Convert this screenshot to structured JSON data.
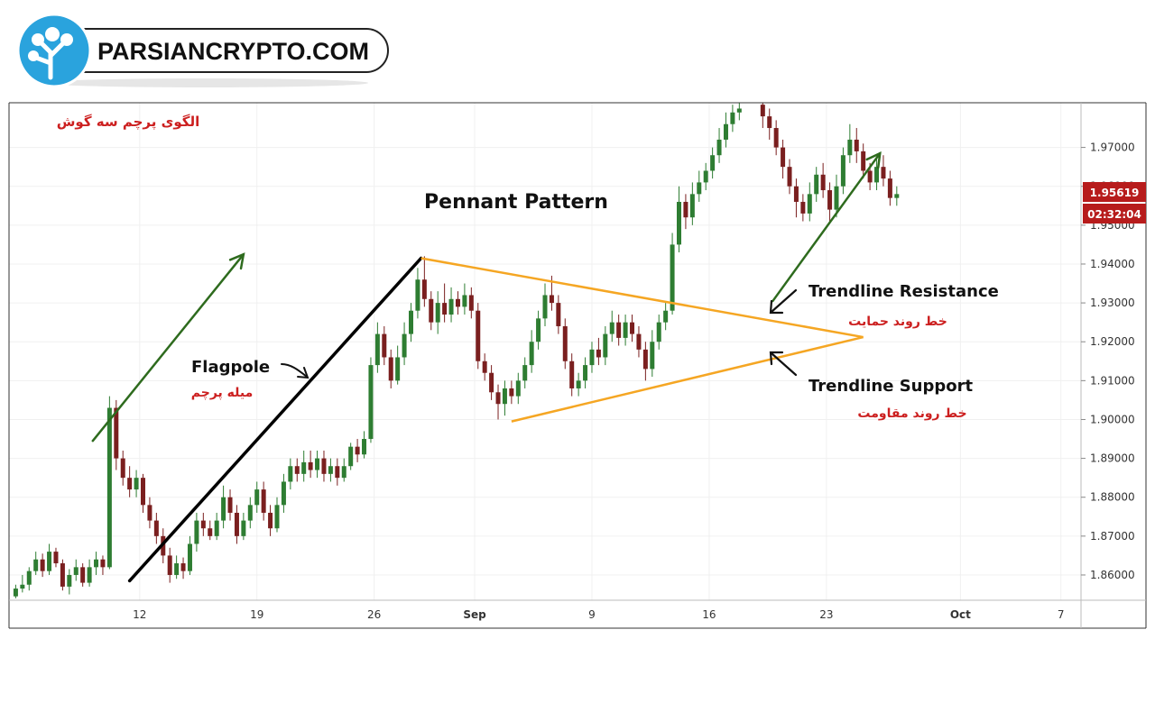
{
  "brand": {
    "text": "PARSIANCRYPTO.COM",
    "logo_icon": "tree-icon",
    "accent": "#2aa3dd"
  },
  "chart_data": {
    "type": "candlestick",
    "title_fa": "الگوی پرچم سه گوش",
    "pattern_title": "Pennant Pattern",
    "annotations": {
      "flagpole_en": "Flagpole",
      "flagpole_fa": "میله پرچم",
      "resistance_en": "Trendline Resistance",
      "resistance_fa": "خط روند حمایت",
      "support_en": "Trendline Support",
      "support_fa": "خط روند مقاومت"
    },
    "x_ticks": [
      {
        "day": 12,
        "label": "12"
      },
      {
        "day": 19,
        "label": "19"
      },
      {
        "day": 26,
        "label": "26"
      },
      {
        "day": 32,
        "label": "Sep"
      },
      {
        "day": 39,
        "label": "9"
      },
      {
        "day": 46,
        "label": "16"
      },
      {
        "day": 53,
        "label": "23"
      },
      {
        "day": 61,
        "label": "Oct"
      },
      {
        "day": 67,
        "label": "7"
      }
    ],
    "y_ticks": [
      "1.86000",
      "1.87000",
      "1.88000",
      "1.89000",
      "1.90000",
      "1.91000",
      "1.92000",
      "1.93000",
      "1.94000",
      "1.95000",
      "1.96000",
      "1.97000"
    ],
    "y_range": [
      1.8535,
      1.9815
    ],
    "x_range": [
      4.2,
      68.2
    ],
    "last_price": "1.95619",
    "countdown": "02:32:04",
    "colors": {
      "bull": "#2e7d32",
      "bear": "#7a1f1f",
      "flagpole": "#000000",
      "pennant": "#f5a623",
      "arrow_up": "#2e6b1e",
      "fa_text": "#cc1f1f",
      "price_tag": "#b71c1c"
    },
    "flagpole": {
      "from": {
        "day": 11.4,
        "price": 1.8585
      },
      "to": {
        "day": 28.8,
        "price": 1.9415
      }
    },
    "pennant": {
      "apex": {
        "day": 55.2,
        "price": 1.9212
      },
      "top": {
        "day": 28.8,
        "price": 1.9415
      },
      "bottom": {
        "day": 34.2,
        "price": 1.8995
      }
    },
    "arrows": [
      {
        "from": {
          "day": 9.2,
          "price": 1.8945
        },
        "to": {
          "day": 18.2,
          "price": 1.9425
        }
      },
      {
        "from": {
          "day": 49.8,
          "price": 1.9305
        },
        "to": {
          "day": 56.2,
          "price": 1.9685
        }
      }
    ],
    "candles": [
      [
        4.6,
        1.8545,
        1.8565,
        1.854,
        1.8575
      ],
      [
        5.0,
        1.8565,
        1.8575,
        1.8555,
        1.86
      ],
      [
        5.4,
        1.8575,
        1.861,
        1.856,
        1.862
      ],
      [
        5.8,
        1.861,
        1.864,
        1.86,
        1.866
      ],
      [
        6.2,
        1.864,
        1.861,
        1.8595,
        1.8655
      ],
      [
        6.6,
        1.861,
        1.866,
        1.86,
        1.868
      ],
      [
        7.0,
        1.866,
        1.863,
        1.862,
        1.867
      ],
      [
        7.4,
        1.863,
        1.857,
        1.856,
        1.864
      ],
      [
        7.8,
        1.857,
        1.86,
        1.855,
        1.8615
      ],
      [
        8.2,
        1.86,
        1.862,
        1.8585,
        1.864
      ],
      [
        8.6,
        1.862,
        1.858,
        1.857,
        1.863
      ],
      [
        9.0,
        1.858,
        1.862,
        1.857,
        1.864
      ],
      [
        9.4,
        1.862,
        1.864,
        1.86,
        1.866
      ],
      [
        9.8,
        1.864,
        1.862,
        1.86,
        1.865
      ],
      [
        10.2,
        1.862,
        1.903,
        1.8615,
        1.906
      ],
      [
        10.6,
        1.903,
        1.89,
        1.887,
        1.905
      ],
      [
        11.0,
        1.89,
        1.885,
        1.883,
        1.892
      ],
      [
        11.4,
        1.885,
        1.882,
        1.88,
        1.888
      ],
      [
        11.8,
        1.882,
        1.885,
        1.88,
        1.887
      ],
      [
        12.2,
        1.885,
        1.878,
        1.876,
        1.886
      ],
      [
        12.6,
        1.878,
        1.874,
        1.872,
        1.88
      ],
      [
        13.0,
        1.874,
        1.87,
        1.868,
        1.876
      ],
      [
        13.4,
        1.87,
        1.865,
        1.863,
        1.872
      ],
      [
        13.8,
        1.865,
        1.86,
        1.858,
        1.867
      ],
      [
        14.2,
        1.86,
        1.863,
        1.859,
        1.865
      ],
      [
        14.6,
        1.863,
        1.861,
        1.859,
        1.8645
      ],
      [
        15.0,
        1.861,
        1.868,
        1.86,
        1.87
      ],
      [
        15.4,
        1.868,
        1.874,
        1.866,
        1.876
      ],
      [
        15.8,
        1.874,
        1.872,
        1.87,
        1.876
      ],
      [
        16.2,
        1.872,
        1.87,
        1.869,
        1.874
      ],
      [
        16.6,
        1.87,
        1.874,
        1.869,
        1.876
      ],
      [
        17.0,
        1.874,
        1.88,
        1.872,
        1.883
      ],
      [
        17.4,
        1.88,
        1.876,
        1.874,
        1.882
      ],
      [
        17.8,
        1.876,
        1.87,
        1.868,
        1.878
      ],
      [
        18.2,
        1.87,
        1.874,
        1.869,
        1.876
      ],
      [
        18.6,
        1.874,
        1.878,
        1.872,
        1.88
      ],
      [
        19.0,
        1.878,
        1.882,
        1.876,
        1.884
      ],
      [
        19.4,
        1.882,
        1.876,
        1.874,
        1.884
      ],
      [
        19.8,
        1.876,
        1.872,
        1.87,
        1.878
      ],
      [
        20.2,
        1.872,
        1.878,
        1.871,
        1.88
      ],
      [
        20.6,
        1.878,
        1.884,
        1.876,
        1.886
      ],
      [
        21.0,
        1.884,
        1.888,
        1.882,
        1.89
      ],
      [
        21.4,
        1.888,
        1.886,
        1.884,
        1.89
      ],
      [
        21.8,
        1.886,
        1.889,
        1.884,
        1.892
      ],
      [
        22.2,
        1.889,
        1.887,
        1.885,
        1.892
      ],
      [
        22.6,
        1.887,
        1.89,
        1.885,
        1.892
      ],
      [
        23.0,
        1.89,
        1.886,
        1.884,
        1.892
      ],
      [
        23.4,
        1.886,
        1.888,
        1.884,
        1.89
      ],
      [
        23.8,
        1.888,
        1.885,
        1.883,
        1.89
      ],
      [
        24.2,
        1.885,
        1.888,
        1.884,
        1.89
      ],
      [
        24.6,
        1.888,
        1.893,
        1.887,
        1.894
      ],
      [
        25.0,
        1.893,
        1.891,
        1.889,
        1.895
      ],
      [
        25.4,
        1.891,
        1.895,
        1.89,
        1.897
      ],
      [
        25.8,
        1.895,
        1.914,
        1.894,
        1.916
      ],
      [
        26.2,
        1.914,
        1.922,
        1.912,
        1.925
      ],
      [
        26.6,
        1.922,
        1.916,
        1.914,
        1.924
      ],
      [
        27.0,
        1.916,
        1.91,
        1.908,
        1.918
      ],
      [
        27.4,
        1.91,
        1.916,
        1.909,
        1.919
      ],
      [
        27.8,
        1.916,
        1.922,
        1.914,
        1.925
      ],
      [
        28.2,
        1.922,
        1.928,
        1.92,
        1.93
      ],
      [
        28.6,
        1.928,
        1.936,
        1.926,
        1.939
      ],
      [
        29.0,
        1.936,
        1.931,
        1.929,
        1.942
      ],
      [
        29.4,
        1.931,
        1.925,
        1.923,
        1.933
      ],
      [
        29.8,
        1.925,
        1.93,
        1.922,
        1.933
      ],
      [
        30.2,
        1.93,
        1.927,
        1.925,
        1.935
      ],
      [
        30.6,
        1.927,
        1.931,
        1.925,
        1.934
      ],
      [
        31.0,
        1.931,
        1.929,
        1.927,
        1.933
      ],
      [
        31.4,
        1.929,
        1.932,
        1.927,
        1.935
      ],
      [
        31.8,
        1.932,
        1.928,
        1.926,
        1.934
      ],
      [
        32.2,
        1.928,
        1.915,
        1.913,
        1.93
      ],
      [
        32.6,
        1.915,
        1.912,
        1.91,
        1.917
      ],
      [
        33.0,
        1.912,
        1.907,
        1.905,
        1.914
      ],
      [
        33.4,
        1.907,
        1.904,
        1.9,
        1.909
      ],
      [
        33.8,
        1.904,
        1.908,
        1.901,
        1.91
      ],
      [
        34.2,
        1.908,
        1.906,
        1.904,
        1.91
      ],
      [
        34.6,
        1.906,
        1.91,
        1.904,
        1.912
      ],
      [
        35.0,
        1.91,
        1.914,
        1.908,
        1.916
      ],
      [
        35.4,
        1.914,
        1.92,
        1.912,
        1.923
      ],
      [
        35.8,
        1.92,
        1.926,
        1.918,
        1.928
      ],
      [
        36.2,
        1.926,
        1.932,
        1.924,
        1.935
      ],
      [
        36.6,
        1.932,
        1.93,
        1.928,
        1.937
      ],
      [
        37.0,
        1.93,
        1.924,
        1.922,
        1.932
      ],
      [
        37.4,
        1.924,
        1.915,
        1.913,
        1.926
      ],
      [
        37.8,
        1.915,
        1.908,
        1.906,
        1.917
      ],
      [
        38.2,
        1.908,
        1.91,
        1.906,
        1.912
      ],
      [
        38.6,
        1.91,
        1.914,
        1.908,
        1.916
      ],
      [
        39.0,
        1.914,
        1.918,
        1.912,
        1.92
      ],
      [
        39.4,
        1.918,
        1.916,
        1.914,
        1.921
      ],
      [
        39.8,
        1.916,
        1.922,
        1.914,
        1.924
      ],
      [
        40.2,
        1.922,
        1.925,
        1.92,
        1.928
      ],
      [
        40.6,
        1.925,
        1.921,
        1.919,
        1.927
      ],
      [
        41.0,
        1.921,
        1.925,
        1.919,
        1.927
      ],
      [
        41.4,
        1.925,
        1.922,
        1.92,
        1.927
      ],
      [
        41.8,
        1.922,
        1.918,
        1.916,
        1.924
      ],
      [
        42.2,
        1.918,
        1.913,
        1.91,
        1.92
      ],
      [
        42.6,
        1.913,
        1.92,
        1.911,
        1.923
      ],
      [
        43.0,
        1.92,
        1.925,
        1.918,
        1.927
      ],
      [
        43.4,
        1.925,
        1.928,
        1.923,
        1.93
      ],
      [
        43.8,
        1.928,
        1.945,
        1.927,
        1.948
      ],
      [
        44.2,
        1.945,
        1.956,
        1.943,
        1.96
      ],
      [
        44.6,
        1.956,
        1.952,
        1.949,
        1.958
      ],
      [
        45.0,
        1.952,
        1.958,
        1.95,
        1.961
      ],
      [
        45.4,
        1.958,
        1.961,
        1.956,
        1.964
      ],
      [
        45.8,
        1.961,
        1.964,
        1.959,
        1.966
      ],
      [
        46.2,
        1.964,
        1.968,
        1.962,
        1.97
      ],
      [
        46.6,
        1.968,
        1.972,
        1.966,
        1.975
      ],
      [
        47.0,
        1.972,
        1.976,
        1.97,
        1.979
      ],
      [
        47.4,
        1.976,
        1.979,
        1.974,
        1.981
      ],
      [
        47.8,
        1.979,
        1.98,
        1.977,
        1.9815
      ],
      [
        49.2,
        1.981,
        1.978,
        1.975,
        1.9815
      ],
      [
        49.6,
        1.978,
        1.975,
        1.972,
        1.98
      ],
      [
        50.0,
        1.975,
        1.97,
        1.968,
        1.977
      ],
      [
        50.4,
        1.97,
        1.965,
        1.962,
        1.972
      ],
      [
        50.8,
        1.965,
        1.96,
        1.958,
        1.967
      ],
      [
        51.2,
        1.96,
        1.956,
        1.952,
        1.962
      ],
      [
        51.6,
        1.956,
        1.953,
        1.951,
        1.958
      ],
      [
        52.0,
        1.953,
        1.958,
        1.951,
        1.961
      ],
      [
        52.4,
        1.958,
        1.963,
        1.956,
        1.965
      ],
      [
        52.8,
        1.963,
        1.959,
        1.957,
        1.966
      ],
      [
        53.2,
        1.959,
        1.954,
        1.951,
        1.961
      ],
      [
        53.6,
        1.954,
        1.96,
        1.952,
        1.963
      ],
      [
        54.0,
        1.96,
        1.968,
        1.958,
        1.97
      ],
      [
        54.4,
        1.968,
        1.972,
        1.966,
        1.976
      ],
      [
        54.8,
        1.972,
        1.969,
        1.966,
        1.975
      ],
      [
        55.2,
        1.969,
        1.964,
        1.962,
        1.971
      ],
      [
        55.6,
        1.964,
        1.961,
        1.959,
        1.966
      ],
      [
        56.0,
        1.961,
        1.965,
        1.959,
        1.967
      ],
      [
        56.4,
        1.965,
        1.962,
        1.96,
        1.968
      ],
      [
        56.8,
        1.962,
        1.957,
        1.955,
        1.964
      ],
      [
        57.2,
        1.957,
        1.958,
        1.955,
        1.96
      ]
    ]
  }
}
